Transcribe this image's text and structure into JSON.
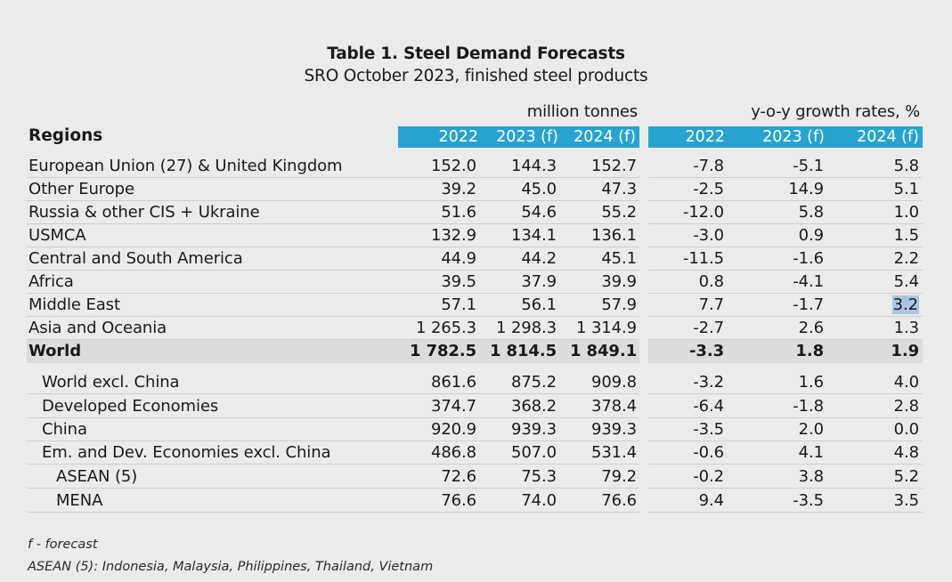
{
  "title": "Table 1. Steel Demand Forecasts",
  "subtitle": "SRO October 2023, finished steel products",
  "unit_left": "million tonnes",
  "unit_right": "y-o-y growth rates, %",
  "regions_header": "Regions",
  "columns_left": [
    "2022",
    "2023 (f)",
    "2024 (f)"
  ],
  "columns_right": [
    "2022",
    "2023 (f)",
    "2024 (f)"
  ],
  "rows": [
    {
      "label": "European Union (27) & United Kingdom",
      "values": [
        "152.0",
        "144.3",
        "152.7"
      ],
      "growth": [
        "-7.8",
        "-5.1",
        "5.8"
      ]
    },
    {
      "label": "Other Europe",
      "values": [
        "39.2",
        "45.0",
        "47.3"
      ],
      "growth": [
        "-2.5",
        "14.9",
        "5.1"
      ]
    },
    {
      "label": "Russia & other CIS + Ukraine",
      "values": [
        "51.6",
        "54.6",
        "55.2"
      ],
      "growth": [
        "-12.0",
        "5.8",
        "1.0"
      ]
    },
    {
      "label": "USMCA",
      "values": [
        "132.9",
        "134.1",
        "136.1"
      ],
      "growth": [
        "-3.0",
        "0.9",
        "1.5"
      ]
    },
    {
      "label": "Central and South America",
      "values": [
        "44.9",
        "44.2",
        "45.1"
      ],
      "growth": [
        "-11.5",
        "-1.6",
        "2.2"
      ]
    },
    {
      "label": "Africa",
      "values": [
        "39.5",
        "37.9",
        "39.9"
      ],
      "growth": [
        "0.8",
        "-4.1",
        "5.4"
      ]
    },
    {
      "label": "Middle East",
      "values": [
        "57.1",
        "56.1",
        "57.9"
      ],
      "growth": [
        "7.7",
        "-1.7",
        "3.2"
      ]
    },
    {
      "label": "Asia and Oceania",
      "values": [
        "1 265.3",
        "1 298.3",
        "1 314.9"
      ],
      "growth": [
        "-2.7",
        "2.6",
        "1.3"
      ]
    },
    {
      "label": "World",
      "values": [
        "1 782.5",
        "1 814.5",
        "1 849.1"
      ],
      "growth": [
        "-3.3",
        "1.8",
        "1.9"
      ]
    },
    {
      "label": "World excl. China",
      "values": [
        "861.6",
        "875.2",
        "909.8"
      ],
      "growth": [
        "-3.2",
        "1.6",
        "4.0"
      ]
    },
    {
      "label": "Developed Economies",
      "values": [
        "374.7",
        "368.2",
        "378.4"
      ],
      "growth": [
        "-6.4",
        "-1.8",
        "2.8"
      ]
    },
    {
      "label": "China",
      "values": [
        "920.9",
        "939.3",
        "939.3"
      ],
      "growth": [
        "-3.5",
        "2.0",
        "0.0"
      ]
    },
    {
      "label": "Em. and Dev. Economies excl. China",
      "values": [
        "486.8",
        "507.0",
        "531.4"
      ],
      "growth": [
        "-0.6",
        "4.1",
        "4.8"
      ]
    },
    {
      "label": "ASEAN (5)",
      "values": [
        "72.6",
        "75.3",
        "79.2"
      ],
      "growth": [
        "-0.2",
        "3.8",
        "5.2"
      ]
    },
    {
      "label": "MENA",
      "values": [
        "76.6",
        "74.0",
        "76.6"
      ],
      "growth": [
        "9.4",
        "-3.5",
        "3.5"
      ]
    }
  ],
  "footnotes": [
    "f - forecast",
    "ASEAN (5): Indonesia, Malaysia, Philippines, Thailand, Vietnam"
  ],
  "colors": {
    "header_bar": "#27a3cf",
    "world_row": "#dcdcdc",
    "selection_highlight": "#a9c6e4"
  }
}
